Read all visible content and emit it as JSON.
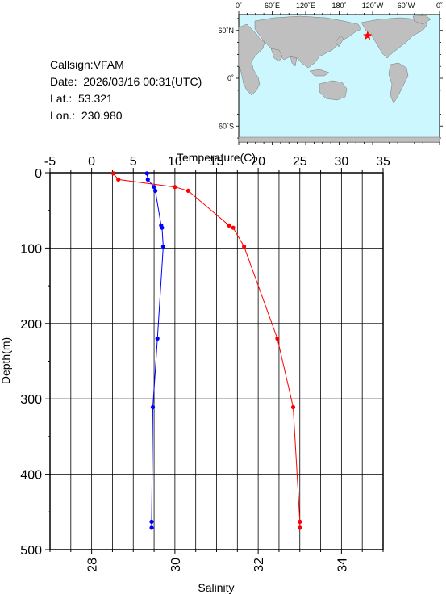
{
  "info": {
    "callsign": "Callsign:VFAM",
    "date": "Date:  2026/03/16 00:31(UTC)",
    "lat": "Lat.:  53.321",
    "lon": "Lon.:  230.980"
  },
  "map": {
    "lon_ticks": [
      "0˚",
      "60˚E",
      "120˚E",
      "180˚",
      "120˚W",
      "60˚W",
      "0˚"
    ],
    "lat_ticks": [
      "60˚N",
      "0˚",
      "60˚S"
    ],
    "ocean_color": "#ccf7ff",
    "land_color": "#bfbfbf",
    "marker_icon": "red-star-icon",
    "marker_color": "#ff0000",
    "marker": {
      "lon": 230.98,
      "lat": 53.321
    }
  },
  "chart_data": {
    "type": "line",
    "top_axis_label": "Temperature(C)",
    "bottom_axis_label": "Salinity",
    "ylabel": "Depth(m)",
    "top_ticks": [
      "-5",
      "0",
      "5",
      "10",
      "15",
      "20",
      "25",
      "30",
      "35"
    ],
    "bottom_ticks": [
      "28",
      "30",
      "32",
      "34"
    ],
    "y_ticks": [
      "0",
      "100",
      "200",
      "300",
      "400",
      "500"
    ],
    "temperature_range": [
      -5,
      35
    ],
    "salinity_range": [
      27,
      35
    ],
    "depth_range": [
      0,
      500
    ],
    "grid": true,
    "series": [
      {
        "color": "#ff0000",
        "axis": "temperature",
        "points": [
          {
            "depth": 1,
            "value": 2.6
          },
          {
            "depth": 9,
            "value": 3.2
          },
          {
            "depth": 19,
            "value": 10.0
          },
          {
            "depth": 24,
            "value": 11.6
          },
          {
            "depth": 70,
            "value": 16.5
          },
          {
            "depth": 73,
            "value": 17.0
          },
          {
            "depth": 98,
            "value": 18.3
          },
          {
            "depth": 220,
            "value": 22.3
          },
          {
            "depth": 311,
            "value": 24.2
          },
          {
            "depth": 463,
            "value": 25.0
          },
          {
            "depth": 471,
            "value": 25.0
          }
        ]
      },
      {
        "color": "#0000ff",
        "axis": "salinity",
        "points": [
          {
            "depth": 1,
            "value": 29.33
          },
          {
            "depth": 9,
            "value": 29.35
          },
          {
            "depth": 19,
            "value": 29.5
          },
          {
            "depth": 24,
            "value": 29.53
          },
          {
            "depth": 70,
            "value": 29.67
          },
          {
            "depth": 73,
            "value": 29.69
          },
          {
            "depth": 98,
            "value": 29.72
          },
          {
            "depth": 220,
            "value": 29.58
          },
          {
            "depth": 311,
            "value": 29.47
          },
          {
            "depth": 463,
            "value": 29.44
          },
          {
            "depth": 471,
            "value": 29.44
          }
        ]
      }
    ]
  }
}
